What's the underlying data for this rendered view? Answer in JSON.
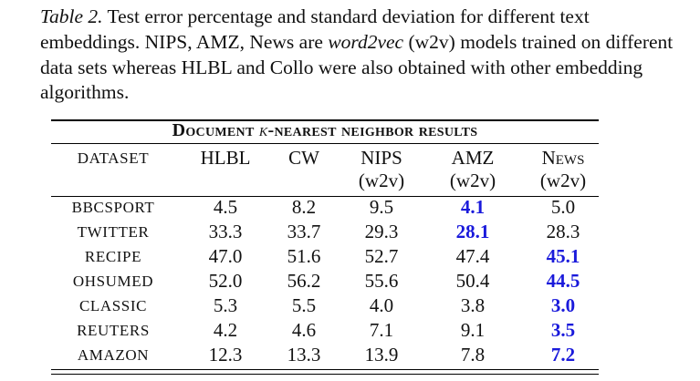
{
  "caption": {
    "label": "Table 2.",
    "text_a": " Test error percentage and standard deviation for different text embeddings. NIPS, AMZ, News are ",
    "text_em": "word2vec",
    "text_b": " (w2v) models trained on different data sets whereas HLBL and Collo were also obtained with other embedding algorithms."
  },
  "table": {
    "title_pre": "Document ",
    "title_k": "k",
    "title_post": "-nearest neighbor results",
    "dataset_header": "DATASET",
    "columns": [
      {
        "name": "HLBL",
        "sub": ""
      },
      {
        "name": "CW",
        "sub": ""
      },
      {
        "name": "NIPS",
        "sub": "(w2v)"
      },
      {
        "name": "AMZ",
        "sub": "(w2v)"
      },
      {
        "name": "News",
        "sub": "(w2v)"
      }
    ],
    "rows": [
      {
        "dataset": "BBCSPORT",
        "values": [
          "4.5",
          "8.2",
          "9.5",
          "4.1",
          "5.0"
        ],
        "best": 3
      },
      {
        "dataset": "TWITTER",
        "values": [
          "33.3",
          "33.7",
          "29.3",
          "28.1",
          "28.3"
        ],
        "best": 3
      },
      {
        "dataset": "RECIPE",
        "values": [
          "47.0",
          "51.6",
          "52.7",
          "47.4",
          "45.1"
        ],
        "best": 4
      },
      {
        "dataset": "OHSUMED",
        "values": [
          "52.0",
          "56.2",
          "55.6",
          "50.4",
          "44.5"
        ],
        "best": 4
      },
      {
        "dataset": "CLASSIC",
        "values": [
          "5.3",
          "5.5",
          "4.0",
          "3.8",
          "3.0"
        ],
        "best": 4
      },
      {
        "dataset": "REUTERS",
        "values": [
          "4.2",
          "4.6",
          "7.1",
          "9.1",
          "3.5"
        ],
        "best": 4
      },
      {
        "dataset": "AMAZON",
        "values": [
          "12.3",
          "13.3",
          "13.9",
          "7.8",
          "7.2"
        ],
        "best": 4
      }
    ]
  },
  "colors": {
    "best_value": "#1a1adb",
    "text": "#111111"
  }
}
